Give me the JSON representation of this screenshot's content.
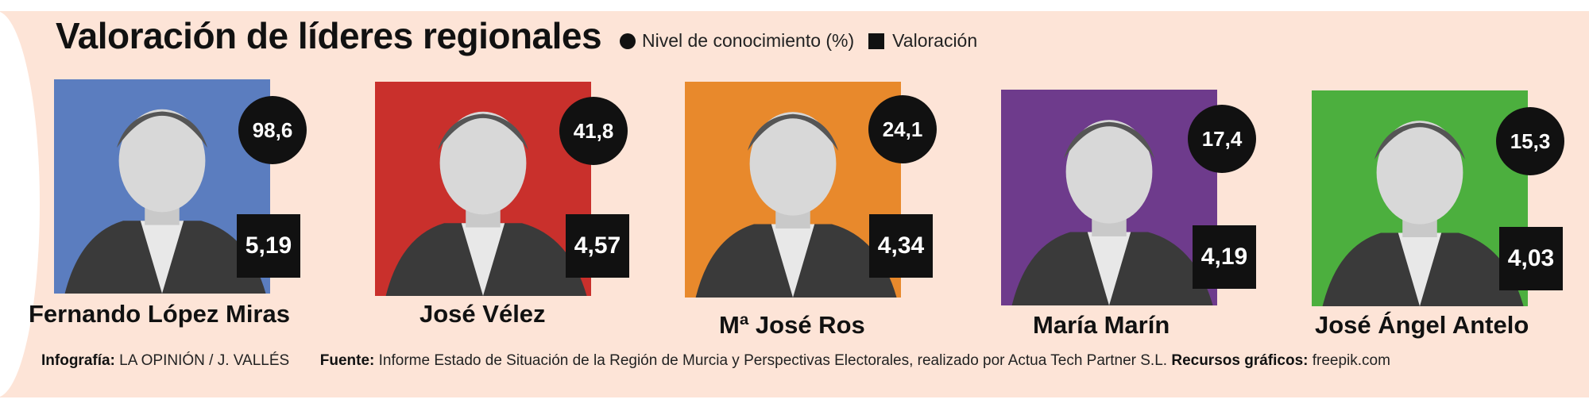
{
  "title": "Valoración de líderes regionales",
  "legend": {
    "awareness_label": "Nivel de conocimiento (%)",
    "rating_label": "Valoración"
  },
  "chart_data": {
    "type": "table",
    "title": "Valoración de líderes regionales",
    "series": [
      {
        "name": "Nivel de conocimiento (%)",
        "values": [
          98.6,
          41.8,
          24.1,
          17.4,
          15.3
        ]
      },
      {
        "name": "Valoración",
        "values": [
          5.19,
          4.57,
          4.34,
          4.19,
          4.03
        ]
      }
    ],
    "categories": [
      "Fernando López Miras",
      "José Vélez",
      "Mª José Ros",
      "María Marín",
      "José Ángel Antelo"
    ]
  },
  "leaders": [
    {
      "name": "Fernando López Miras",
      "awareness": "98,6",
      "rating": "5,19",
      "color": "#5b7dbf"
    },
    {
      "name": "José Vélez",
      "awareness": "41,8",
      "rating": "4,57",
      "color": "#c9302c"
    },
    {
      "name": "Mª José Ros",
      "awareness": "24,1",
      "rating": "4,34",
      "color": "#e8892c"
    },
    {
      "name": "María Marín",
      "awareness": "17,4",
      "rating": "4,19",
      "color": "#6e3b8c"
    },
    {
      "name": "José Ángel Antelo",
      "awareness": "15,3",
      "rating": "4,03",
      "color": "#4caf3e"
    }
  ],
  "footer": {
    "infografia_label": "Infografía:",
    "infografia_value": "LA OPINIÓN / J. VALLÉS",
    "fuente_label": "Fuente:",
    "fuente_value": "Informe Estado de Situación de la Región de Murcia y Perspectivas Electorales, realizado por Actua Tech Partner S.L.",
    "recursos_label": "Recursos gráficos:",
    "recursos_value": "freepik.com"
  }
}
